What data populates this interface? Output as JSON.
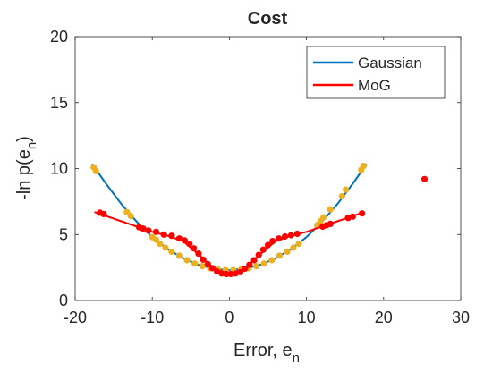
{
  "chart_data": {
    "type": "line",
    "title": "Cost",
    "xlabel": "Error, e",
    "xlabel_subscript": "n",
    "ylabel": "-ln p(e",
    "ylabel_subscript": "n",
    "ylabel_suffix": ")",
    "xlim": [
      -20,
      30
    ],
    "ylim": [
      0,
      20
    ],
    "xticks": [
      -20,
      -10,
      0,
      10,
      20,
      30
    ],
    "yticks": [
      0,
      5,
      10,
      15,
      20
    ],
    "grid": false,
    "legend": {
      "placement": "top-right",
      "entries": [
        "Gaussian",
        "MoG"
      ]
    },
    "colors": {
      "gaussian": "#0072BD",
      "mog": "#FF0000",
      "gaussian_markers": "#EDB120",
      "mog_markers": "#FF0000"
    },
    "series": [
      {
        "name": "Gaussian",
        "x": [
          -17.8,
          -16,
          -14,
          -12,
          -10,
          -8,
          -6,
          -4,
          -2,
          0,
          2,
          4,
          6,
          8,
          10,
          12,
          14,
          16,
          17.8
        ],
        "y": [
          10.35,
          8.85,
          7.3,
          5.95,
          4.8,
          3.9,
          3.2,
          2.7,
          2.4,
          2.3,
          2.4,
          2.7,
          3.2,
          3.9,
          4.8,
          5.95,
          7.3,
          8.85,
          10.35
        ]
      },
      {
        "name": "MoG",
        "x": [
          -17.5,
          -16,
          -14,
          -12,
          -10,
          -8,
          -6,
          -4,
          -2,
          0,
          2,
          4,
          6,
          8,
          10,
          12,
          14,
          16,
          17.5
        ],
        "y": [
          6.7,
          6.4,
          6.0,
          5.6,
          5.2,
          4.9,
          4.5,
          3.5,
          2.4,
          2.0,
          2.4,
          3.5,
          4.5,
          4.9,
          5.2,
          5.6,
          6.0,
          6.4,
          6.7
        ]
      }
    ],
    "gaussian_points": [
      [
        -17.6,
        10.1
      ],
      [
        -17.3,
        9.8
      ],
      [
        -13.3,
        6.7
      ],
      [
        -12.8,
        6.4
      ],
      [
        -10,
        4.8
      ],
      [
        -9.5,
        4.6
      ],
      [
        -9,
        4.3
      ],
      [
        -8.3,
        4.0
      ],
      [
        -7.5,
        3.7
      ],
      [
        -6.5,
        3.4
      ],
      [
        -5.5,
        3.05
      ],
      [
        -4.5,
        2.8
      ],
      [
        -3.5,
        2.6
      ],
      [
        -2.5,
        2.45
      ],
      [
        -1.5,
        2.35
      ],
      [
        -0.5,
        2.3
      ],
      [
        0.5,
        2.3
      ],
      [
        1.5,
        2.35
      ],
      [
        2.5,
        2.45
      ],
      [
        3.5,
        2.6
      ],
      [
        4.5,
        2.8
      ],
      [
        5.5,
        3.05
      ],
      [
        6.5,
        3.4
      ],
      [
        7.5,
        3.7
      ],
      [
        8.3,
        4.0
      ],
      [
        9,
        4.3
      ],
      [
        11.4,
        5.7
      ],
      [
        11.8,
        6.0
      ],
      [
        12.2,
        6.3
      ],
      [
        13.1,
        6.9
      ],
      [
        14.6,
        7.9
      ],
      [
        15.1,
        8.4
      ],
      [
        17.1,
        9.9
      ],
      [
        17.4,
        10.2
      ]
    ],
    "mog_points": [
      [
        -16.8,
        6.65
      ],
      [
        -16.3,
        6.55
      ],
      [
        -11.7,
        5.55
      ],
      [
        -11.2,
        5.45
      ],
      [
        -10.5,
        5.3
      ],
      [
        -9.5,
        5.2
      ],
      [
        -8.5,
        5.0
      ],
      [
        -7.5,
        4.9
      ],
      [
        -6.5,
        4.7
      ],
      [
        -5.8,
        4.55
      ],
      [
        -5.2,
        4.3
      ],
      [
        -4.6,
        3.95
      ],
      [
        -4.0,
        3.55
      ],
      [
        -3.4,
        3.1
      ],
      [
        -2.8,
        2.75
      ],
      [
        -2.2,
        2.45
      ],
      [
        -1.6,
        2.2
      ],
      [
        -1.0,
        2.05
      ],
      [
        -0.4,
        2.0
      ],
      [
        0.2,
        2.0
      ],
      [
        0.8,
        2.05
      ],
      [
        1.4,
        2.15
      ],
      [
        2.0,
        2.4
      ],
      [
        2.6,
        2.7
      ],
      [
        3.2,
        3.05
      ],
      [
        3.8,
        3.45
      ],
      [
        4.4,
        3.85
      ],
      [
        5.0,
        4.2
      ],
      [
        5.6,
        4.5
      ],
      [
        6.4,
        4.7
      ],
      [
        7.2,
        4.85
      ],
      [
        8.0,
        4.95
      ],
      [
        8.8,
        5.05
      ],
      [
        12.1,
        5.6
      ],
      [
        12.6,
        5.7
      ],
      [
        13.1,
        5.8
      ],
      [
        15.4,
        6.25
      ],
      [
        16.0,
        6.35
      ],
      [
        17.2,
        6.6
      ],
      [
        25.3,
        9.2
      ]
    ]
  }
}
